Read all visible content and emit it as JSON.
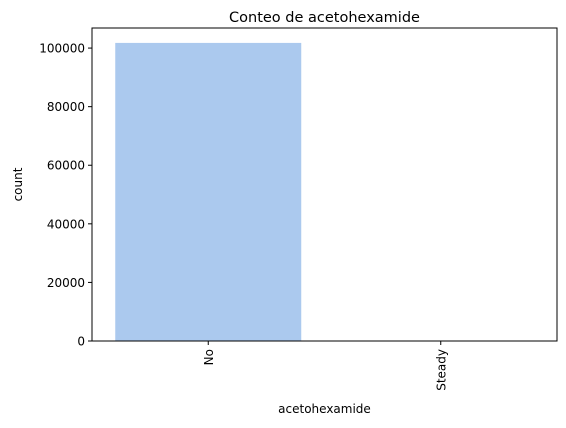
{
  "chart_data": {
    "type": "bar",
    "title": "Conteo de acetohexamide",
    "xlabel": "acetohexamide",
    "ylabel": "count",
    "categories": [
      "No",
      "Steady"
    ],
    "values": [
      101765,
      1
    ],
    "ylim": [
      0,
      106853
    ],
    "yticks": [
      "0",
      "20000",
      "40000",
      "60000",
      "80000",
      "100000"
    ],
    "ytick_values": [
      0,
      20000,
      40000,
      60000,
      80000,
      100000
    ],
    "xtick_rotation_deg": 90,
    "grid": false,
    "legend": "none",
    "colors": {
      "bar": "#abc9ee",
      "axis": "#000000",
      "background": "#ffffff"
    }
  }
}
